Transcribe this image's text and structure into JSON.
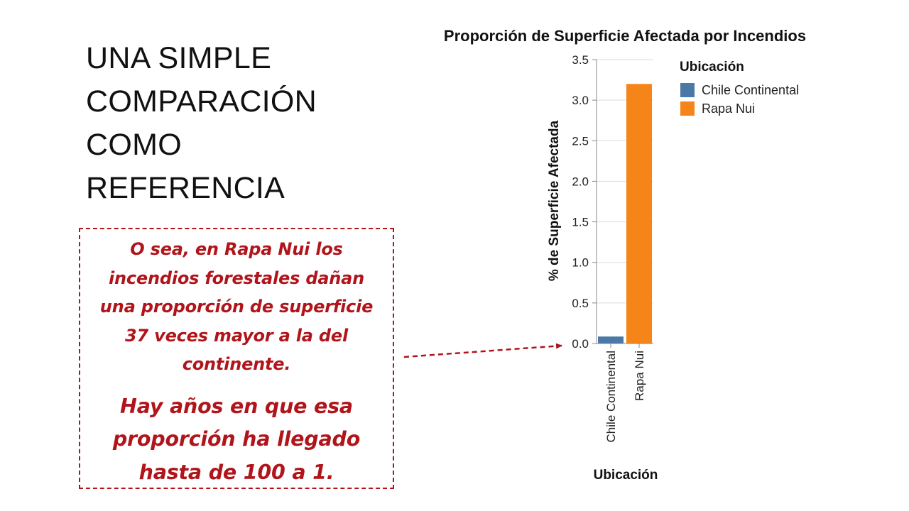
{
  "slide": {
    "heading_lines": [
      "UNA SIMPLE",
      "COMPARACIÓN",
      "COMO",
      "REFERENCIA"
    ],
    "callout": {
      "lines": [
        "O sea, en Rapa Nui los",
        "incendios forestales dañan",
        "una proporción de superficie",
        "37 veces mayor a la del",
        "continente."
      ],
      "emphasis_lines": [
        "Hay años en que esa",
        "proporción ha llegado",
        "hasta de 100 a 1."
      ],
      "color": "#b0151b"
    }
  },
  "chart_data": {
    "type": "bar",
    "title": "Proporción de Superficie Afectada por Incendios",
    "xlabel": "Ubicación",
    "ylabel": "% de Superficie Afectada",
    "categories": [
      "Chile Continental",
      "Rapa Nui"
    ],
    "values": [
      0.086,
      3.2
    ],
    "colors": [
      "#4c78a8",
      "#f58518"
    ],
    "ylim": [
      0,
      3.5
    ],
    "yticks": [
      "0.0",
      "0.5",
      "1.0",
      "1.5",
      "2.0",
      "2.5",
      "3.0",
      "3.5"
    ],
    "grid": true,
    "legend": {
      "title": "Ubicación",
      "placement": "right",
      "entries": [
        "Chile Continental",
        "Rapa Nui"
      ]
    }
  }
}
